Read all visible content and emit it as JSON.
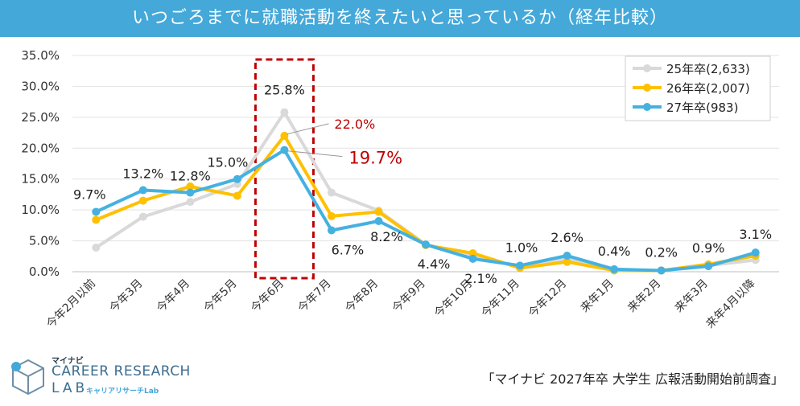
{
  "title": "いつごろまでに就職活動を終えたいと思っているか（経年比較）",
  "source": "「マイナビ 2027年卒 大学生 広報活動開始前調査」",
  "logo": {
    "brand": "マイナビ",
    "line1": "CAREER RESEARCH",
    "line2": "LAB",
    "sub": "キャリアリサーチLab"
  },
  "chart_data": {
    "type": "line",
    "categories": [
      "今年2月以前",
      "今年3月",
      "今年4月",
      "今年5月",
      "今年6月",
      "今年7月",
      "今年8月",
      "今年9月",
      "今年10月",
      "今年11月",
      "今年12月",
      "来年1月",
      "来年2月",
      "来年3月",
      "来年4月以降"
    ],
    "y_ticks": [
      "0.0%",
      "5.0%",
      "10.0%",
      "15.0%",
      "20.0%",
      "25.0%",
      "30.0%",
      "35.0%"
    ],
    "ylim": [
      0,
      35
    ],
    "legend_position": "top-right",
    "series": [
      {
        "name": "25年卒(2,633)",
        "color": "#d9d9d9",
        "values": [
          3.9,
          8.9,
          11.3,
          14.2,
          25.8,
          12.8,
          9.9,
          4.4,
          2.6,
          0.8,
          2.1,
          0.3,
          0.2,
          1.0,
          1.9
        ]
      },
      {
        "name": "26年卒(2,007)",
        "color": "#ffc000",
        "values": [
          8.4,
          11.5,
          13.8,
          12.3,
          22.0,
          9.0,
          9.7,
          4.3,
          3.0,
          0.6,
          1.6,
          0.2,
          0.2,
          1.2,
          2.6
        ]
      },
      {
        "name": "27年卒(983)",
        "color": "#45b1e0",
        "values": [
          9.7,
          13.2,
          12.8,
          15.0,
          19.7,
          6.7,
          8.2,
          4.4,
          2.1,
          1.0,
          2.6,
          0.4,
          0.2,
          0.9,
          3.1
        ]
      }
    ],
    "point_labels": [
      "9.7%",
      "13.2%",
      "12.8%",
      "15.0%",
      "25.8%",
      "6.7%",
      "8.2%",
      "4.4%",
      "2.1%",
      "1.0%",
      "2.6%",
      "0.4%",
      "0.2%",
      "0.9%",
      "3.1%"
    ],
    "callouts": [
      {
        "text": "22.0%",
        "color": "#c00000"
      },
      {
        "text": "19.7%",
        "color": "#c00000"
      }
    ],
    "highlight_category": "今年6月",
    "highlight_color": "#c00000"
  }
}
